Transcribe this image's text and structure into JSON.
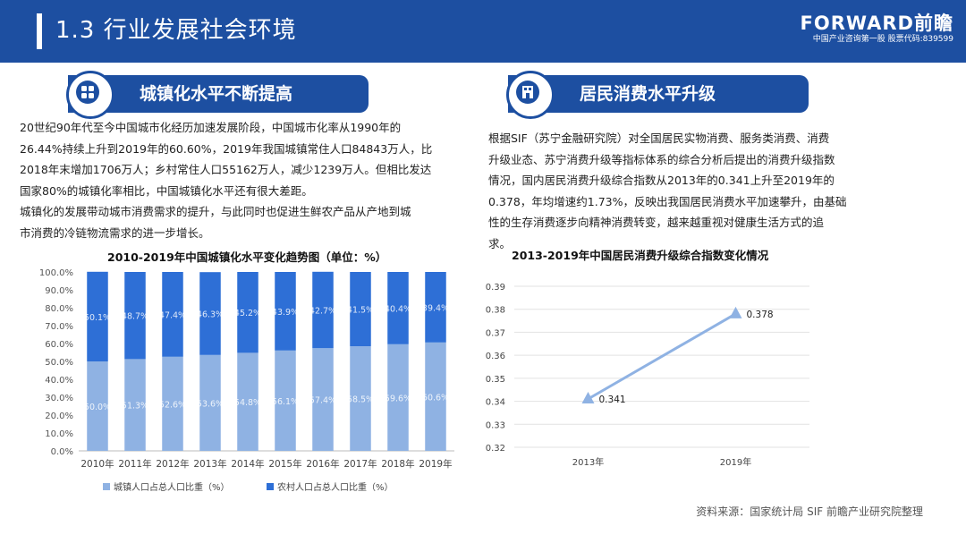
{
  "header": {
    "title": "1.3 行业发展社会环境"
  },
  "brand": {
    "logo": "FORWARD前瞻",
    "tagline": "中国产业咨询第一股 股票代码:839599"
  },
  "left": {
    "section_title": "城镇化水平不断提高",
    "icon": "grid-circle-icon",
    "paragraph_lines": [
      "20世纪90年代至今中国城市化经历加速发展阶段，中国城市化率从1990年的",
      "26.44%持续上升到2019年的60.60%，2019年我国城镇常住人口84843万人，比",
      "2018年末增加1706万人；乡村常住人口55162万人，减少1239万人。但相比发达",
      "国家80%的城镇化率相比，中国城镇化水平还有很大差距。",
      "城镇化的发展带动城市消费需求的提升，与此同时也促进生鲜农产品从产地到城",
      "市消费的冷链物流需求的进一步增长。"
    ]
  },
  "right": {
    "section_title": "居民消费水平升级",
    "icon": "shop-building-icon",
    "paragraph_lines": [
      "根据SIF（苏宁金融研究院）对全国居民实物消费、服务类消费、消费",
      "升级业态、苏宁消费升级等指标体系的综合分析后提出的消费升级指数",
      "情况，国内居民消费升级综合指数从2013年的0.341上升至2019年的",
      "0.378，年均增速约1.73%，反映出我国居民消费水平加速攀升，由基础",
      "性的生存消费逐步向精神消费转变，越来越重视对健康生活方式的追",
      "求。"
    ]
  },
  "chart_data": [
    {
      "type": "bar",
      "stacked": true,
      "title": "2010-2019年中国城镇化水平变化趋势图（单位：%）",
      "categories": [
        "2010年",
        "2011年",
        "2012年",
        "2013年",
        "2014年",
        "2015年",
        "2016年",
        "2017年",
        "2018年",
        "2019年"
      ],
      "series": [
        {
          "name": "城镇人口占总人口比重（%）",
          "color": "#8fb2e3",
          "values": [
            50.0,
            51.3,
            52.6,
            53.6,
            54.8,
            56.1,
            57.4,
            58.5,
            59.6,
            60.6
          ],
          "labels": [
            "50.0%",
            "51.3%",
            "52.6%",
            "53.6%",
            "54.8%",
            "56.1%",
            "57.4%",
            "58.5%",
            "59.6%",
            "60.6%"
          ]
        },
        {
          "name": "农村人口占总人口比重（%）",
          "color": "#2e6fd6",
          "values": [
            50.1,
            48.7,
            47.4,
            46.3,
            45.2,
            43.9,
            42.7,
            41.5,
            40.4,
            39.4
          ],
          "labels": [
            "50.1%",
            "48.7%",
            "47.4%",
            "46.3%",
            "45.2%",
            "43.9%",
            "42.7%",
            "41.5%",
            "40.4%",
            "39.4%"
          ]
        }
      ],
      "y_ticks": [
        "0.0%",
        "10.0%",
        "20.0%",
        "30.0%",
        "40.0%",
        "50.0%",
        "60.0%",
        "70.0%",
        "80.0%",
        "90.0%",
        "100.0%"
      ],
      "ylim": [
        0,
        100
      ],
      "legend_position": "bottom",
      "grid": false
    },
    {
      "type": "line",
      "title": "2013-2019年中国居民消费升级综合指数变化情况",
      "x": [
        "2013年",
        "2019年"
      ],
      "series": [
        {
          "color": "#8fb2e3",
          "values": [
            0.341,
            0.378
          ],
          "labels": [
            "0.341",
            "0.378"
          ]
        }
      ],
      "y_ticks": [
        "0.32",
        "0.33",
        "0.34",
        "0.35",
        "0.36",
        "0.37",
        "0.38",
        "0.39"
      ],
      "ylim": [
        0.32,
        0.39
      ],
      "grid": true
    }
  ],
  "source": "资料来源：国家统计局 SIF 前瞻产业研究院整理"
}
